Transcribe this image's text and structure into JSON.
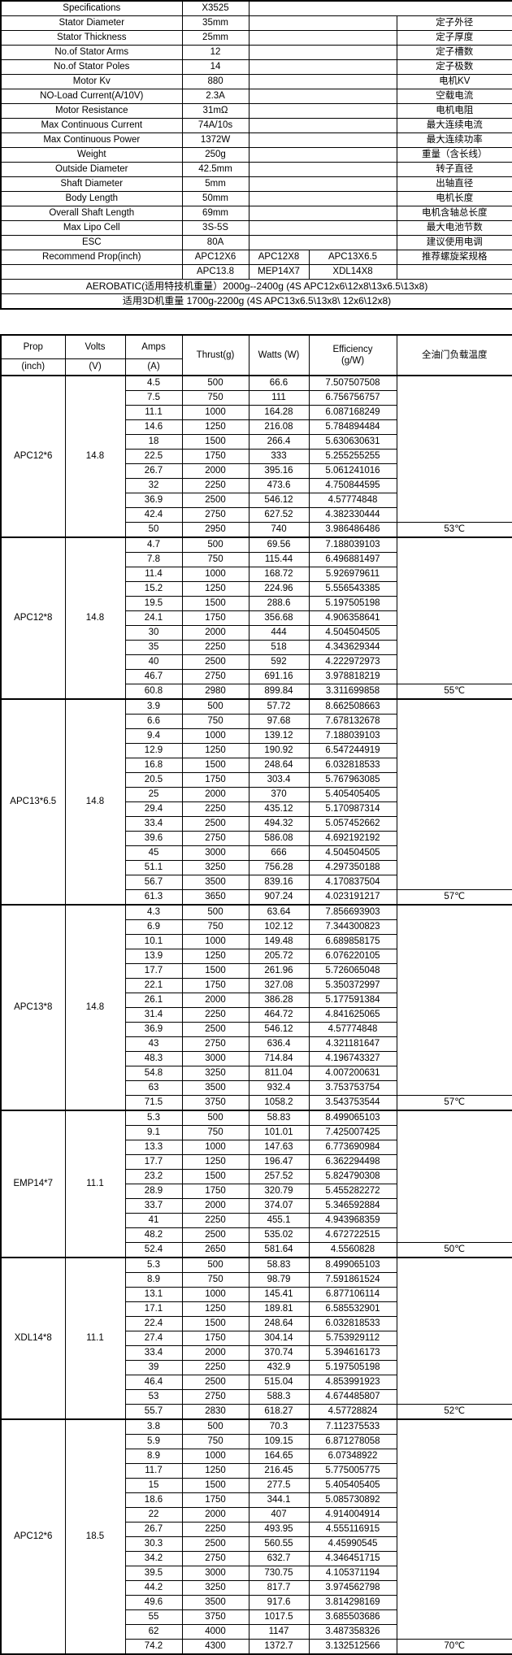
{
  "spec_table": {
    "rows": [
      {
        "label": "Specifications",
        "value": "X3525",
        "cn": ""
      },
      {
        "label": "Stator Diameter",
        "value": "35mm",
        "cn": "定子外径"
      },
      {
        "label": "Stator Thickness",
        "value": "25mm",
        "cn": "定子厚度"
      },
      {
        "label": "No.of Stator Arms",
        "value": "12",
        "cn": "定子槽数"
      },
      {
        "label": "No.of Stator Poles",
        "value": "14",
        "cn": "定子极数"
      },
      {
        "label": "Motor Kv",
        "value": "880",
        "cn": "电机KV"
      },
      {
        "label": "NO-Load Current(A/10V)",
        "value": "2.3A",
        "cn": "空载电流"
      },
      {
        "label": "Motor Resistance",
        "value": "31mΩ",
        "cn": "电机电阻"
      },
      {
        "label": "Max Continuous Current",
        "value": "74A/10s",
        "cn": "最大连续电流"
      },
      {
        "label": "Max Continuous Power",
        "value": "1372W",
        "cn": "最大连续功率"
      },
      {
        "label": "Weight",
        "value": "250g",
        "cn": "重量（含长线）"
      },
      {
        "label": "Outside Diameter",
        "value": "42.5mm",
        "cn": "转子直径"
      },
      {
        "label": "Shaft Diameter",
        "value": "5mm",
        "cn": "出轴直径"
      },
      {
        "label": "Body Length",
        "value": "50mm",
        "cn": "电机长度"
      },
      {
        "label": "Overall Shaft Length",
        "value": "69mm",
        "cn": "电机含轴总长度"
      },
      {
        "label": "Max Lipo Cell",
        "value": "3S-5S",
        "cn": "最大电池节数"
      },
      {
        "label": "ESC",
        "value": "80A",
        "cn": "建议使用电调"
      }
    ],
    "recommend_row1": {
      "label": "Recommend Prop(inch)",
      "c1": "APC12X6",
      "c2": "APC12X8",
      "c3": "APC13X6.5",
      "cn": "推荐螺旋桨规格"
    },
    "recommend_row2": {
      "label": "",
      "c1": "APC13.8",
      "c2": "MEP14X7",
      "c3": "XDL14X8",
      "cn": ""
    },
    "aerobatic_note": "AEROBATIC(适用特技机重量）2000g--2400g  (4S APC12x6\\12x8\\13x6.5\\13x8)",
    "note_3d": "适用3D机重量 1700g-2200g  (4S APC13x6.5\\13x8\\ 12x6\\12x8)"
  },
  "test_table": {
    "header": {
      "prop": "Prop",
      "prop_sub": "(inch)",
      "volts": "Volts",
      "volts_sub": "(V)",
      "amps": "Amps",
      "amps_sub": "(A)",
      "thrust": "Thrust(g)",
      "watts": "Watts (W)",
      "efficiency": "Efficiency",
      "efficiency_sub": "(g/W)",
      "temp": "全油门负载温度"
    },
    "sections": [
      {
        "prop": "APC12*6",
        "volts": "14.8",
        "temp": "53℃",
        "rows": [
          [
            "4.5",
            "500",
            "66.6",
            "7.507507508"
          ],
          [
            "7.5",
            "750",
            "111",
            "6.756756757"
          ],
          [
            "11.1",
            "1000",
            "164.28",
            "6.087168249"
          ],
          [
            "14.6",
            "1250",
            "216.08",
            "5.784894484"
          ],
          [
            "18",
            "1500",
            "266.4",
            "5.630630631"
          ],
          [
            "22.5",
            "1750",
            "333",
            "5.255255255"
          ],
          [
            "26.7",
            "2000",
            "395.16",
            "5.061241016"
          ],
          [
            "32",
            "2250",
            "473.6",
            "4.750844595"
          ],
          [
            "36.9",
            "2500",
            "546.12",
            "4.57774848"
          ],
          [
            "42.4",
            "2750",
            "627.52",
            "4.382330444"
          ],
          [
            "50",
            "2950",
            "740",
            "3.986486486"
          ]
        ]
      },
      {
        "prop": "APC12*8",
        "volts": "14.8",
        "temp": "55℃",
        "rows": [
          [
            "4.7",
            "500",
            "69.56",
            "7.188039103"
          ],
          [
            "7.8",
            "750",
            "115.44",
            "6.496881497"
          ],
          [
            "11.4",
            "1000",
            "168.72",
            "5.926979611"
          ],
          [
            "15.2",
            "1250",
            "224.96",
            "5.556543385"
          ],
          [
            "19.5",
            "1500",
            "288.6",
            "5.197505198"
          ],
          [
            "24.1",
            "1750",
            "356.68",
            "4.906358641"
          ],
          [
            "30",
            "2000",
            "444",
            "4.504504505"
          ],
          [
            "35",
            "2250",
            "518",
            "4.343629344"
          ],
          [
            "40",
            "2500",
            "592",
            "4.222972973"
          ],
          [
            "46.7",
            "2750",
            "691.16",
            "3.978818219"
          ],
          [
            "60.8",
            "2980",
            "899.84",
            "3.311699858"
          ]
        ]
      },
      {
        "prop": "APC13*6.5",
        "volts": "14.8",
        "temp": "57℃",
        "rows": [
          [
            "3.9",
            "500",
            "57.72",
            "8.662508663"
          ],
          [
            "6.6",
            "750",
            "97.68",
            "7.678132678"
          ],
          [
            "9.4",
            "1000",
            "139.12",
            "7.188039103"
          ],
          [
            "12.9",
            "1250",
            "190.92",
            "6.547244919"
          ],
          [
            "16.8",
            "1500",
            "248.64",
            "6.032818533"
          ],
          [
            "20.5",
            "1750",
            "303.4",
            "5.767963085"
          ],
          [
            "25",
            "2000",
            "370",
            "5.405405405"
          ],
          [
            "29.4",
            "2250",
            "435.12",
            "5.170987314"
          ],
          [
            "33.4",
            "2500",
            "494.32",
            "5.057452662"
          ],
          [
            "39.6",
            "2750",
            "586.08",
            "4.692192192"
          ],
          [
            "45",
            "3000",
            "666",
            "4.504504505"
          ],
          [
            "51.1",
            "3250",
            "756.28",
            "4.297350188"
          ],
          [
            "56.7",
            "3500",
            "839.16",
            "4.170837504"
          ],
          [
            "61.3",
            "3650",
            "907.24",
            "4.023191217"
          ]
        ]
      },
      {
        "prop": "APC13*8",
        "volts": "14.8",
        "temp": "57℃",
        "rows": [
          [
            "4.3",
            "500",
            "63.64",
            "7.856693903"
          ],
          [
            "6.9",
            "750",
            "102.12",
            "7.344300823"
          ],
          [
            "10.1",
            "1000",
            "149.48",
            "6.689858175"
          ],
          [
            "13.9",
            "1250",
            "205.72",
            "6.076220105"
          ],
          [
            "17.7",
            "1500",
            "261.96",
            "5.726065048"
          ],
          [
            "22.1",
            "1750",
            "327.08",
            "5.350372997"
          ],
          [
            "26.1",
            "2000",
            "386.28",
            "5.177591384"
          ],
          [
            "31.4",
            "2250",
            "464.72",
            "4.841625065"
          ],
          [
            "36.9",
            "2500",
            "546.12",
            "4.57774848"
          ],
          [
            "43",
            "2750",
            "636.4",
            "4.321181647"
          ],
          [
            "48.3",
            "3000",
            "714.84",
            "4.196743327"
          ],
          [
            "54.8",
            "3250",
            "811.04",
            "4.007200631"
          ],
          [
            "63",
            "3500",
            "932.4",
            "3.753753754"
          ],
          [
            "71.5",
            "3750",
            "1058.2",
            "3.543753544"
          ]
        ]
      },
      {
        "prop": "EMP14*7",
        "volts": "11.1",
        "temp": "50℃",
        "rows": [
          [
            "5.3",
            "500",
            "58.83",
            "8.499065103"
          ],
          [
            "9.1",
            "750",
            "101.01",
            "7.425007425"
          ],
          [
            "13.3",
            "1000",
            "147.63",
            "6.773690984"
          ],
          [
            "17.7",
            "1250",
            "196.47",
            "6.362294498"
          ],
          [
            "23.2",
            "1500",
            "257.52",
            "5.824790308"
          ],
          [
            "28.9",
            "1750",
            "320.79",
            "5.455282272"
          ],
          [
            "33.7",
            "2000",
            "374.07",
            "5.346592884"
          ],
          [
            "41",
            "2250",
            "455.1",
            "4.943968359"
          ],
          [
            "48.2",
            "2500",
            "535.02",
            "4.672722515"
          ],
          [
            "52.4",
            "2650",
            "581.64",
            "4.5560828"
          ]
        ]
      },
      {
        "prop": "XDL14*8",
        "volts": "11.1",
        "temp": "52℃",
        "rows": [
          [
            "5.3",
            "500",
            "58.83",
            "8.499065103"
          ],
          [
            "8.9",
            "750",
            "98.79",
            "7.591861524"
          ],
          [
            "13.1",
            "1000",
            "145.41",
            "6.877106114"
          ],
          [
            "17.1",
            "1250",
            "189.81",
            "6.585532901"
          ],
          [
            "22.4",
            "1500",
            "248.64",
            "6.032818533"
          ],
          [
            "27.4",
            "1750",
            "304.14",
            "5.753929112"
          ],
          [
            "33.4",
            "2000",
            "370.74",
            "5.394616173"
          ],
          [
            "39",
            "2250",
            "432.9",
            "5.197505198"
          ],
          [
            "46.4",
            "2500",
            "515.04",
            "4.853991923"
          ],
          [
            "53",
            "2750",
            "588.3",
            "4.674485807"
          ],
          [
            "55.7",
            "2830",
            "618.27",
            "4.57728824"
          ]
        ]
      },
      {
        "prop": "APC12*6",
        "volts": "18.5",
        "temp": "70℃",
        "rows": [
          [
            "3.8",
            "500",
            "70.3",
            "7.112375533"
          ],
          [
            "5.9",
            "750",
            "109.15",
            "6.871278058"
          ],
          [
            "8.9",
            "1000",
            "164.65",
            "6.07348922"
          ],
          [
            "11.7",
            "1250",
            "216.45",
            "5.775005775"
          ],
          [
            "15",
            "1500",
            "277.5",
            "5.405405405"
          ],
          [
            "18.6",
            "1750",
            "344.1",
            "5.085730892"
          ],
          [
            "22",
            "2000",
            "407",
            "4.914004914"
          ],
          [
            "26.7",
            "2250",
            "493.95",
            "4.555116915"
          ],
          [
            "30.3",
            "2500",
            "560.55",
            "4.45990545"
          ],
          [
            "34.2",
            "2750",
            "632.7",
            "4.346451715"
          ],
          [
            "39.5",
            "3000",
            "730.75",
            "4.105371194"
          ],
          [
            "44.2",
            "3250",
            "817.7",
            "3.974562798"
          ],
          [
            "49.6",
            "3500",
            "917.6",
            "3.814298169"
          ],
          [
            "55",
            "3750",
            "1017.5",
            "3.685503686"
          ],
          [
            "62",
            "4000",
            "1147",
            "3.487358326"
          ],
          [
            "74.2",
            "4300",
            "1372.7",
            "3.132512566"
          ]
        ]
      }
    ]
  }
}
